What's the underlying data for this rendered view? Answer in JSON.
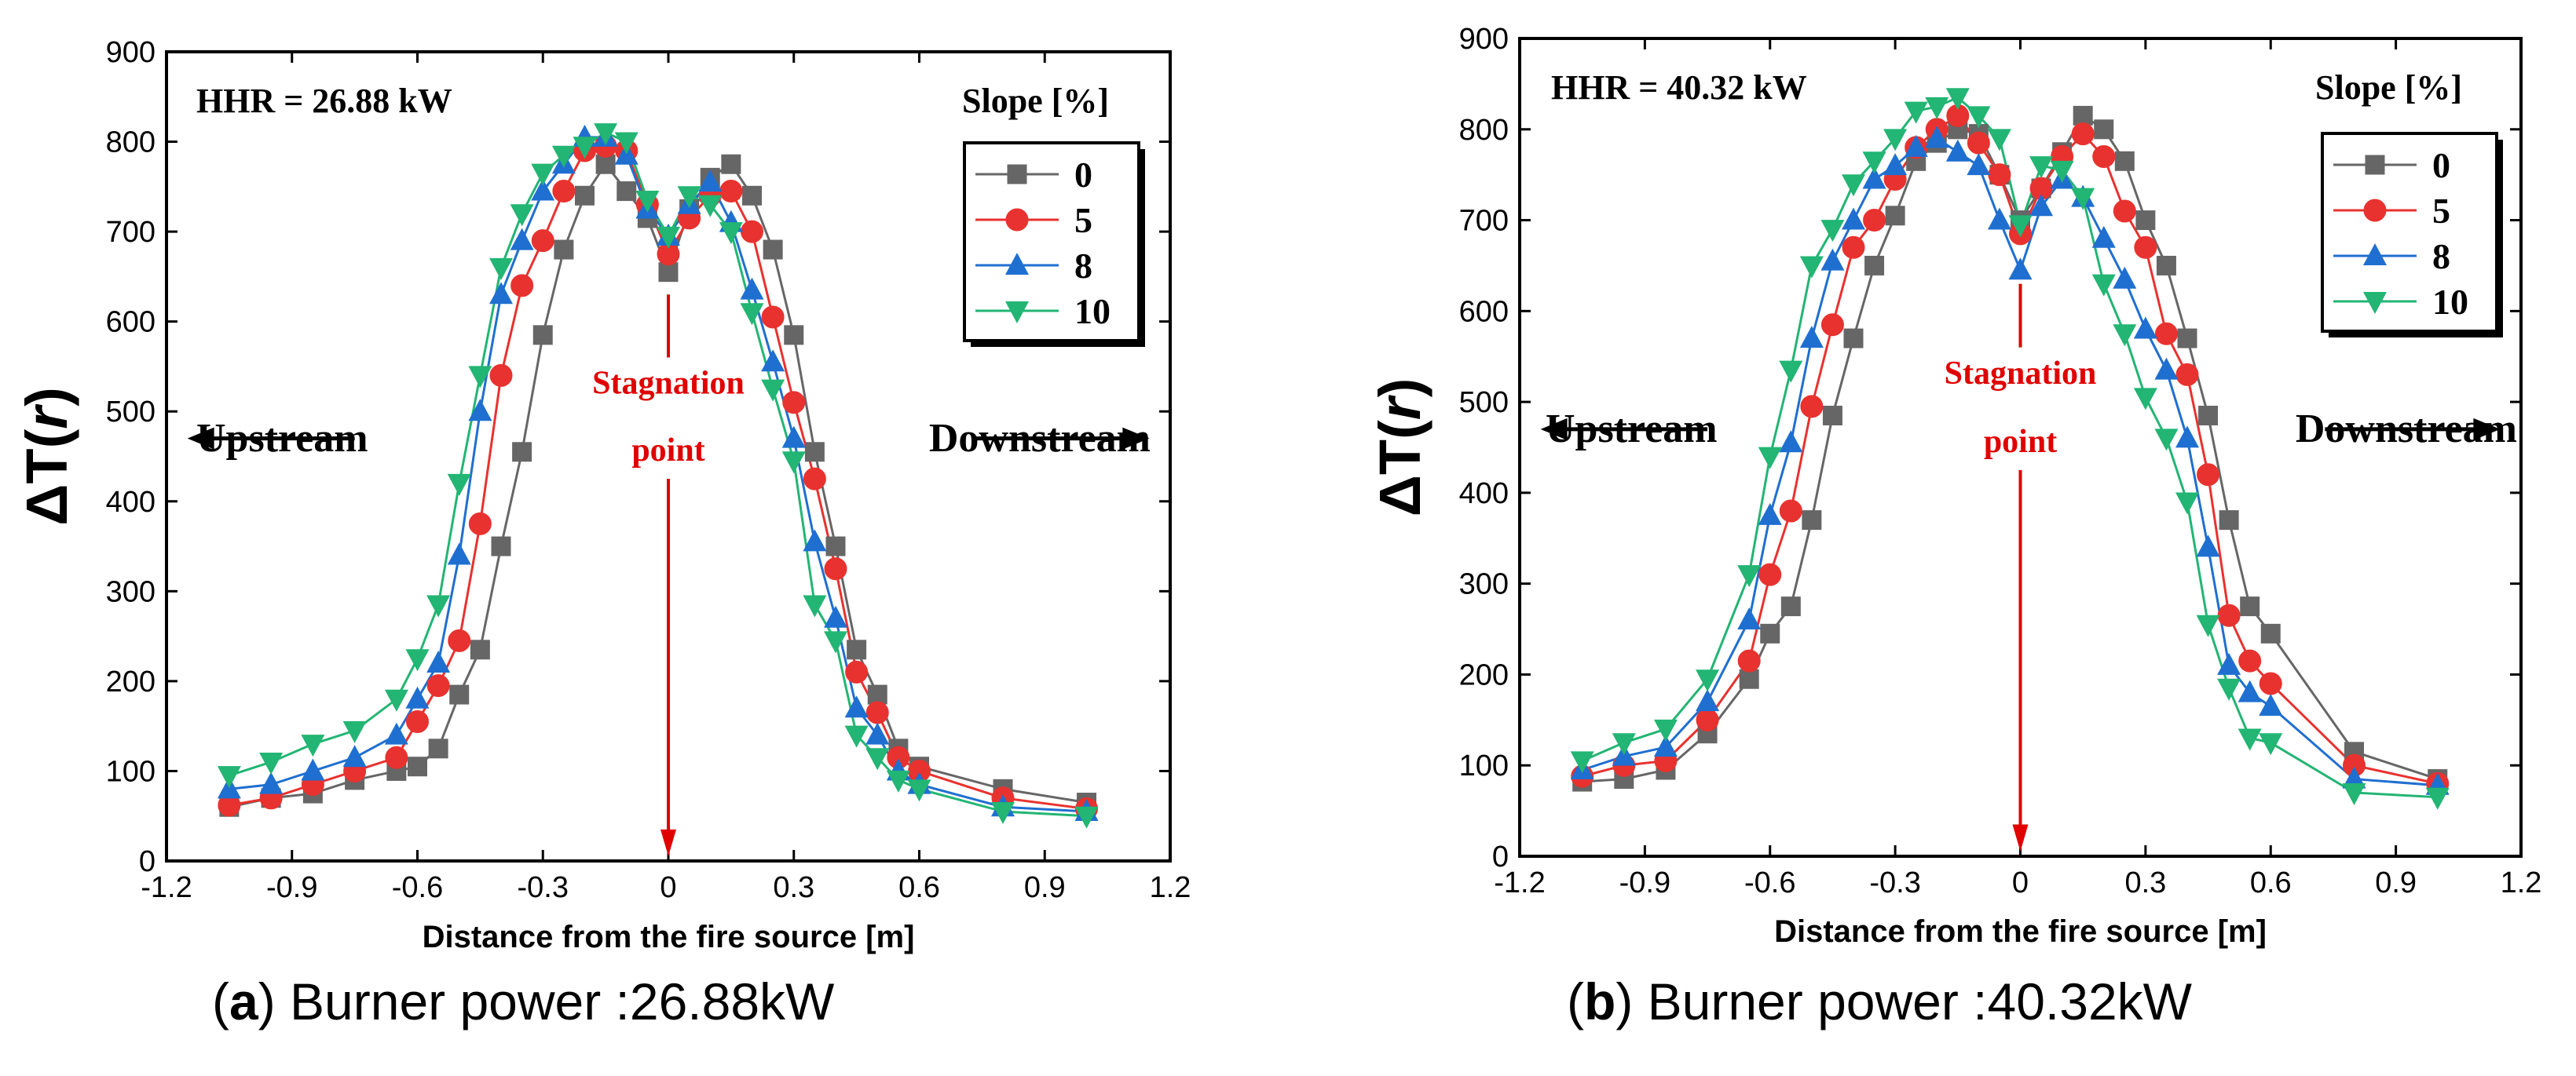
{
  "chart_data": [
    {
      "type": "line",
      "panel": "a",
      "caption_letter": "a",
      "caption_text": "Burner power :26.88kW",
      "annotation": "HHR = 26.88 kW",
      "xlabel": "Distance from the fire source [m]",
      "ylabel_prefix": "ΔT(",
      "ylabel_var": "r",
      "ylabel_suffix": ")",
      "xlim": [
        -1.2,
        1.2
      ],
      "ylim": [
        0,
        900
      ],
      "xticks": [
        -1.2,
        -0.9,
        -0.6,
        -0.3,
        0,
        0.3,
        0.6,
        0.9,
        1.2
      ],
      "xtick_labels": [
        "-1.2",
        "-0.9",
        "-0.6",
        "-0.3",
        "0",
        "0.3",
        "0.6",
        "0.9",
        "1.2"
      ],
      "yticks": [
        0,
        100,
        200,
        300,
        400,
        500,
        600,
        700,
        800,
        900
      ],
      "ytick_labels": [
        "0",
        "100",
        "200",
        "300",
        "400",
        "500",
        "600",
        "700",
        "800",
        "900"
      ],
      "legend_title": "Slope [%]",
      "legend_position": "top-right",
      "upstream_label": "Upstream",
      "downstream_label": "Downstream",
      "stagnation_label_1": "Stagnation",
      "stagnation_label_2": "point",
      "x": [
        -1.05,
        -0.95,
        -0.85,
        -0.75,
        -0.65,
        -0.6,
        -0.55,
        -0.5,
        -0.45,
        -0.4,
        -0.35,
        -0.3,
        -0.25,
        -0.2,
        -0.15,
        -0.1,
        -0.05,
        0,
        0.05,
        0.1,
        0.15,
        0.2,
        0.25,
        0.3,
        0.35,
        0.4,
        0.45,
        0.5,
        0.55,
        0.6,
        0.8,
        1.0
      ],
      "series": [
        {
          "name": "0",
          "color": "#666666",
          "marker": "square",
          "values": [
            60,
            70,
            75,
            90,
            100,
            105,
            125,
            185,
            235,
            350,
            455,
            585,
            680,
            740,
            775,
            745,
            715,
            655,
            725,
            760,
            775,
            740,
            680,
            585,
            455,
            350,
            235,
            185,
            125,
            105,
            80,
            65
          ]
        },
        {
          "name": "5",
          "color": "#e8322f",
          "marker": "circle",
          "values": [
            62,
            70,
            85,
            100,
            115,
            155,
            195,
            245,
            375,
            540,
            640,
            690,
            745,
            790,
            795,
            790,
            730,
            675,
            715,
            740,
            745,
            700,
            605,
            510,
            425,
            325,
            210,
            165,
            115,
            100,
            70,
            58
          ]
        },
        {
          "name": "8",
          "color": "#1f6fd0",
          "marker": "triangle-up",
          "values": [
            80,
            85,
            100,
            115,
            140,
            180,
            220,
            340,
            500,
            630,
            690,
            745,
            775,
            805,
            805,
            785,
            725,
            695,
            730,
            755,
            710,
            635,
            555,
            470,
            355,
            270,
            170,
            140,
            100,
            85,
            60,
            55
          ]
        },
        {
          "name": "10",
          "color": "#22b573",
          "marker": "triangle-down",
          "values": [
            95,
            110,
            130,
            145,
            180,
            225,
            285,
            420,
            540,
            660,
            720,
            765,
            785,
            795,
            810,
            800,
            735,
            695,
            740,
            730,
            700,
            610,
            525,
            445,
            285,
            245,
            140,
            115,
            90,
            80,
            55,
            50
          ]
        }
      ]
    },
    {
      "type": "line",
      "panel": "b",
      "caption_letter": "b",
      "caption_text": "Burner power :40.32kW",
      "annotation": "HHR = 40.32 kW",
      "xlabel": "Distance from the fire source [m]",
      "ylabel_prefix": "ΔT(",
      "ylabel_var": "r",
      "ylabel_suffix": ")",
      "xlim": [
        -1.2,
        1.2
      ],
      "ylim": [
        0,
        900
      ],
      "xticks": [
        -1.2,
        -0.9,
        -0.6,
        -0.3,
        0,
        0.3,
        0.6,
        0.9,
        1.2
      ],
      "xtick_labels": [
        "-1.2",
        "-0.9",
        "-0.6",
        "-0.3",
        "0",
        "0.3",
        "0.6",
        "0.9",
        "1.2"
      ],
      "yticks": [
        0,
        100,
        200,
        300,
        400,
        500,
        600,
        700,
        800,
        900
      ],
      "ytick_labels": [
        "0",
        "100",
        "200",
        "300",
        "400",
        "500",
        "600",
        "700",
        "800",
        "900"
      ],
      "legend_title": "Slope [%]",
      "legend_position": "top-right",
      "upstream_label": "Upstream",
      "downstream_label": "Downstream",
      "stagnation_label_1": "Stagnation",
      "stagnation_label_2": "point",
      "x": [
        -1.05,
        -0.95,
        -0.85,
        -0.75,
        -0.65,
        -0.6,
        -0.55,
        -0.5,
        -0.45,
        -0.4,
        -0.35,
        -0.3,
        -0.25,
        -0.2,
        -0.15,
        -0.1,
        -0.05,
        0,
        0.05,
        0.1,
        0.15,
        0.2,
        0.25,
        0.3,
        0.35,
        0.4,
        0.45,
        0.5,
        0.55,
        0.6,
        0.8,
        1.0
      ],
      "series": [
        {
          "name": "0",
          "color": "#666666",
          "marker": "square",
          "values": [
            82,
            85,
            95,
            135,
            195,
            245,
            275,
            370,
            485,
            570,
            650,
            705,
            765,
            785,
            800,
            795,
            750,
            700,
            735,
            775,
            815,
            800,
            765,
            700,
            650,
            570,
            485,
            370,
            275,
            245,
            115,
            85
          ]
        },
        {
          "name": "5",
          "color": "#e8322f",
          "marker": "circle",
          "values": [
            88,
            100,
            105,
            150,
            215,
            310,
            380,
            495,
            585,
            670,
            700,
            745,
            780,
            800,
            815,
            785,
            750,
            685,
            735,
            770,
            795,
            770,
            710,
            670,
            575,
            530,
            420,
            265,
            215,
            190,
            100,
            80
          ]
        },
        {
          "name": "8",
          "color": "#1f6fd0",
          "marker": "triangle-up",
          "values": [
            95,
            110,
            120,
            170,
            260,
            375,
            455,
            570,
            655,
            700,
            745,
            760,
            780,
            790,
            775,
            760,
            700,
            645,
            715,
            745,
            725,
            680,
            635,
            580,
            535,
            460,
            340,
            210,
            180,
            165,
            85,
            78
          ]
        },
        {
          "name": "10",
          "color": "#22b573",
          "marker": "triangle-down",
          "values": [
            105,
            125,
            140,
            195,
            310,
            440,
            535,
            650,
            690,
            740,
            765,
            790,
            820,
            825,
            835,
            815,
            790,
            695,
            760,
            755,
            725,
            630,
            575,
            505,
            460,
            390,
            255,
            185,
            130,
            125,
            70,
            65
          ]
        }
      ]
    }
  ]
}
